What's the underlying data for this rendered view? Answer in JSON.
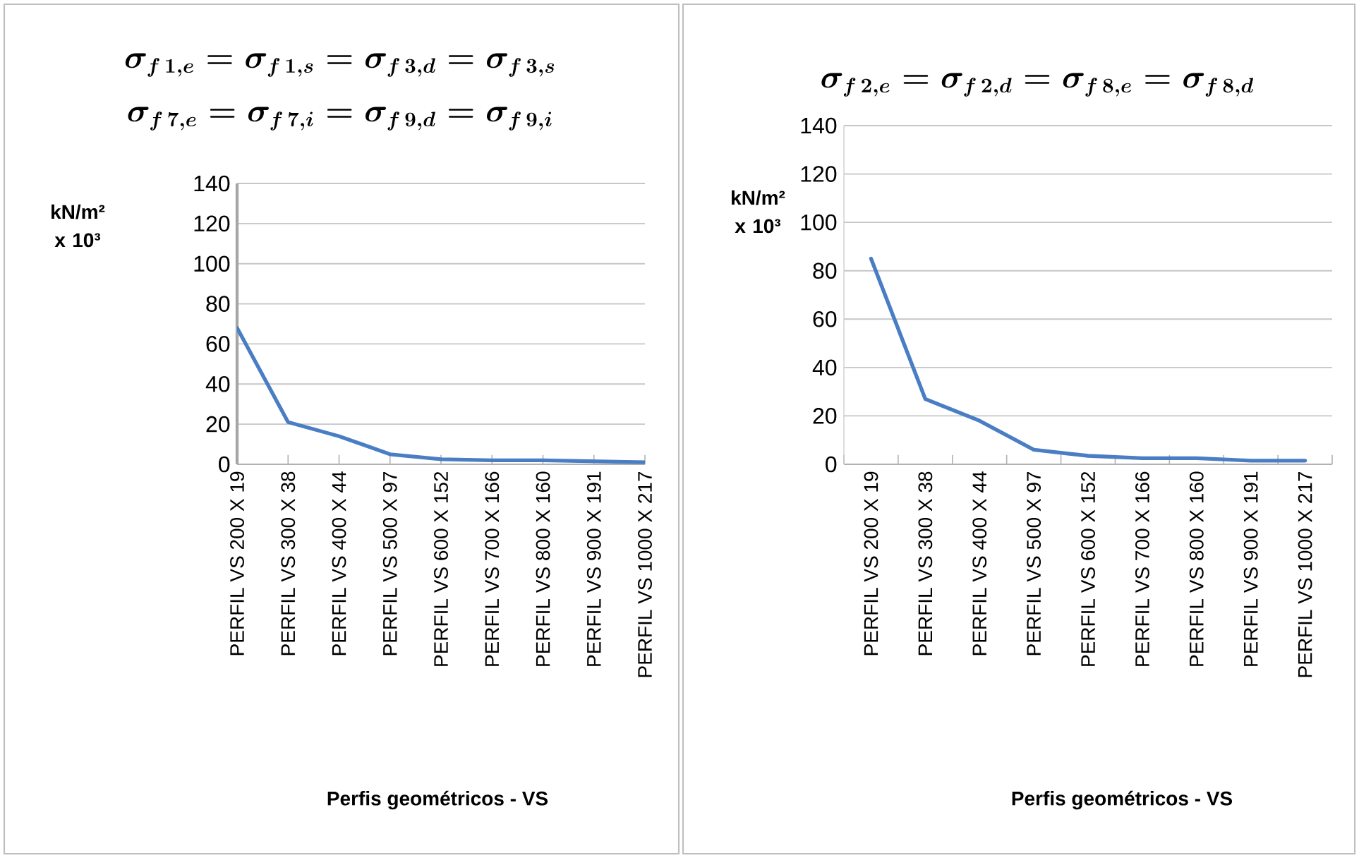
{
  "chart_data": [
    {
      "type": "line",
      "title": "\\sigma_{f\\,1,e} = \\sigma_{f\\,1,s} = \\sigma_{f\\,3,d} = \\sigma_{f\\,3,s}",
      "subtitle": "\\sigma_{f\\,7,e} = \\sigma_{f\\,7,i} = \\sigma_{f\\,9,d} = \\sigma_{f\\,9,i}",
      "xlabel": "Perfis geométricos - VS",
      "ylabel": "kN/m² x 10³",
      "categories": [
        "PERFIL VS 200 X 19",
        "PERFIL VS 300 X 38",
        "PERFIL VS 400 X 44",
        "PERFIL VS 500 X 97",
        "PERFIL VS 600 X 152",
        "PERFIL VS 700 X 166",
        "PERFIL VS 800 X 160",
        "PERFIL VS 900 X 191",
        "PERFIL VS 1000 X 217"
      ],
      "values": [
        68,
        21,
        14,
        5,
        2.5,
        2,
        2,
        1.5,
        1
      ],
      "color": "#4a7ec4",
      "ylim": [
        0,
        140
      ],
      "yticks": [
        0,
        20,
        40,
        60,
        80,
        100,
        120,
        140
      ],
      "grid": "y"
    },
    {
      "type": "line",
      "title": "\\sigma_{f\\,2,e} = \\sigma_{f\\,2,d} = \\sigma_{f\\,8,e} = \\sigma_{f\\,8,d}",
      "xlabel": "Perfis geométricos - VS",
      "ylabel": "kN/m² x 10³",
      "categories": [
        "PERFIL VS 200 X 19",
        "PERFIL VS 300 X 38",
        "PERFIL VS 400 X 44",
        "PERFIL VS 500 X 97",
        "PERFIL VS 600 X 152",
        "PERFIL VS 700 X 166",
        "PERFIL VS 800 X 160",
        "PERFIL VS 900 X 191",
        "PERFIL VS 1000 X 217"
      ],
      "values": [
        85,
        27,
        18,
        6,
        3.5,
        2.5,
        2.5,
        1.5,
        1.5
      ],
      "color": "#4a7ec4",
      "ylim": [
        0,
        140
      ],
      "yticks": [
        0,
        20,
        40,
        60,
        80,
        100,
        120,
        140
      ],
      "grid": "y"
    }
  ]
}
